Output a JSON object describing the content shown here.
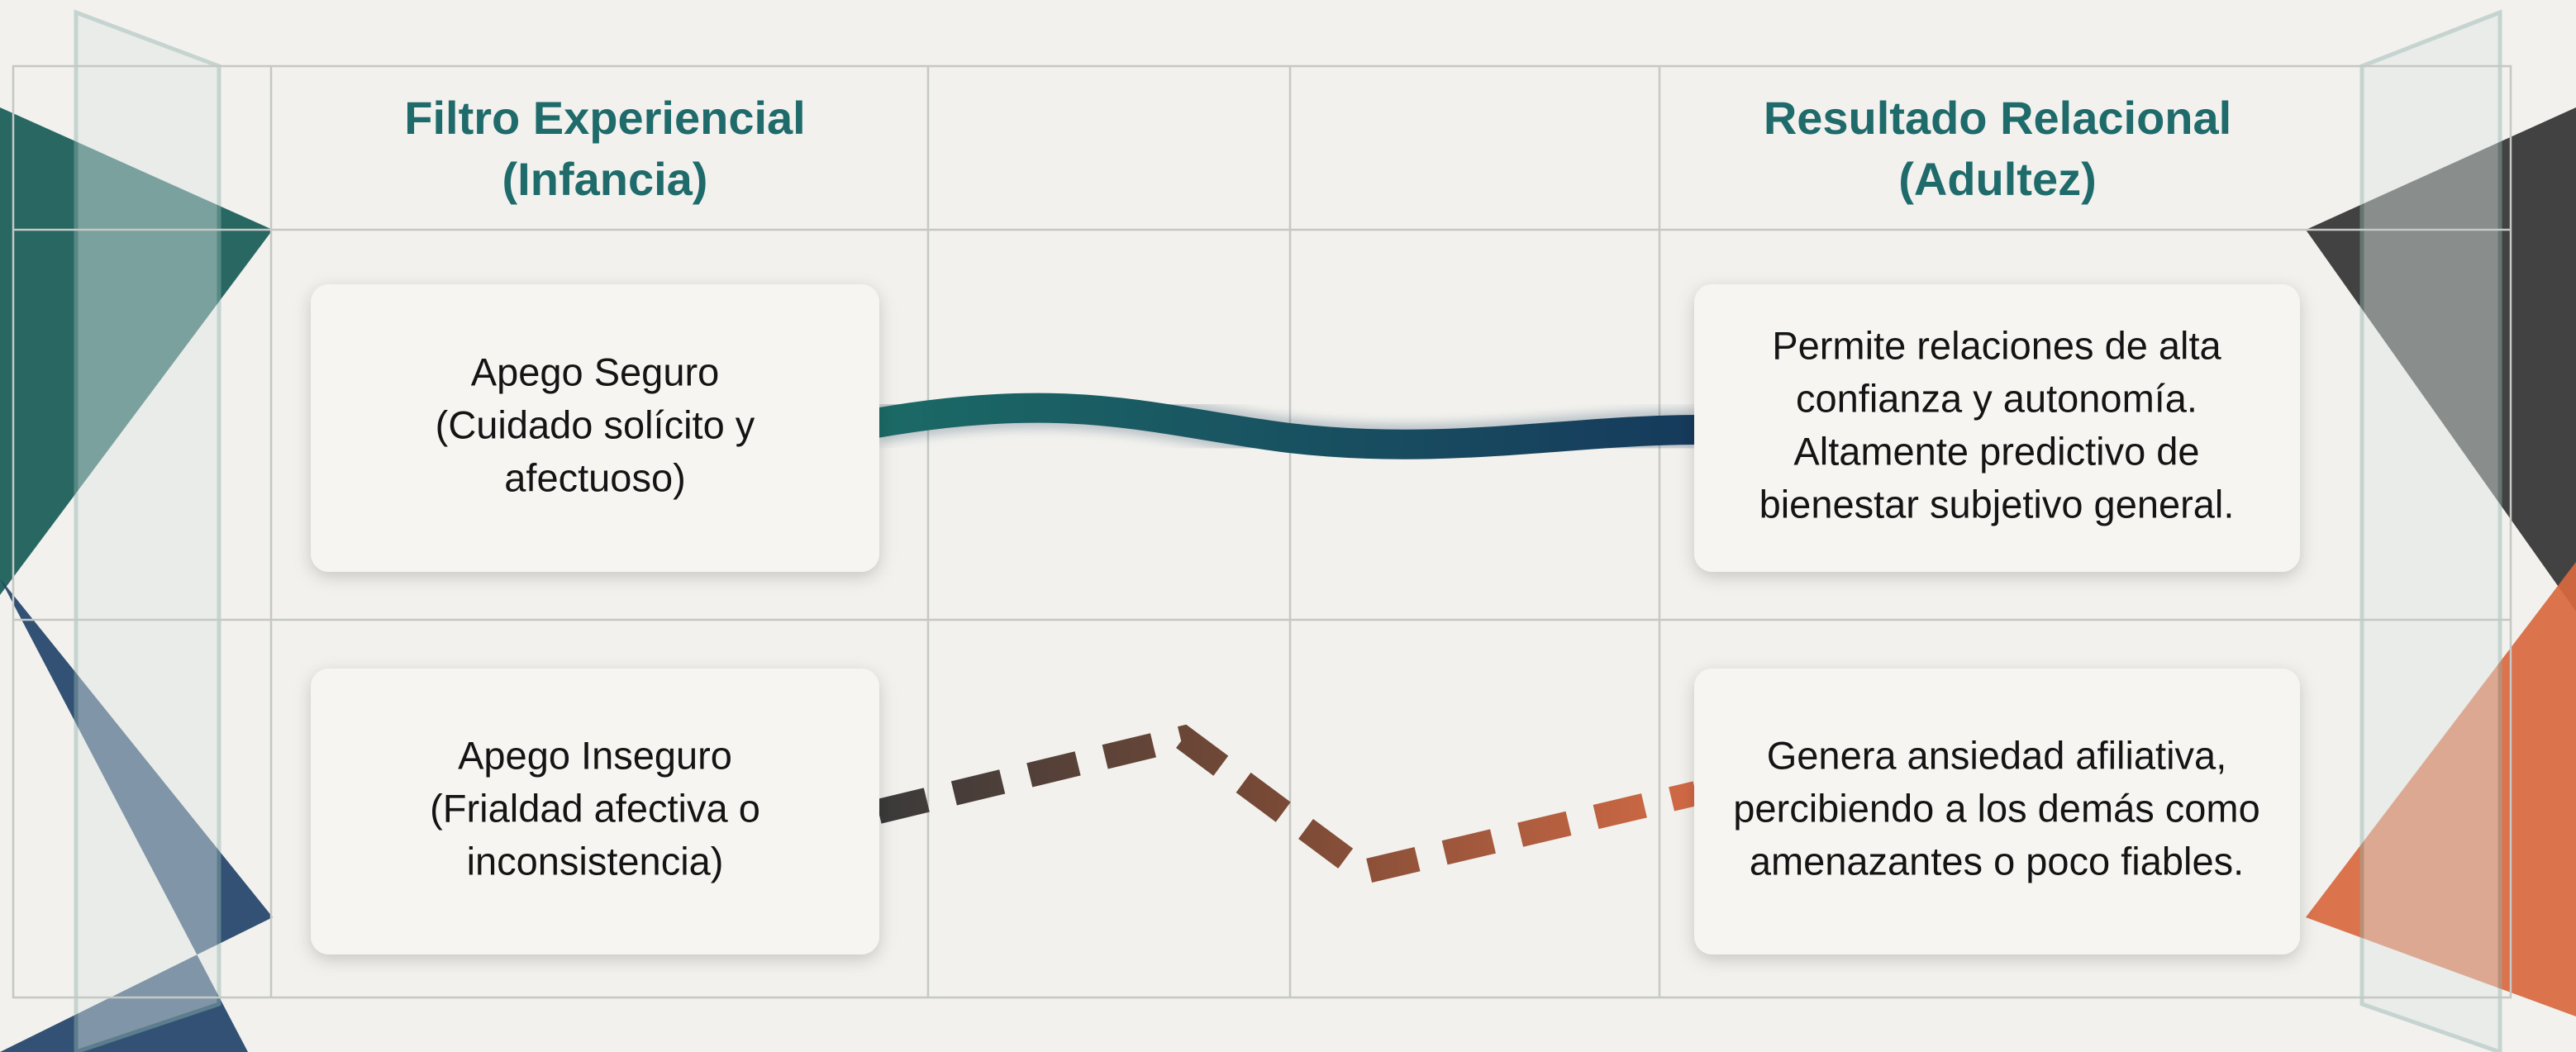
{
  "header": {
    "left": [
      "Filtro Experiencial",
      "(Infancia)"
    ],
    "right": [
      "Resultado Relacional",
      "(Adultez)"
    ]
  },
  "rows": [
    {
      "left": [
        "Apego Seguro",
        "(Cuidado solícito y",
        "afectuoso)"
      ],
      "right": [
        "Permite relaciones de alta",
        "confianza y autonomía.",
        "Altamente predictivo de",
        "bienestar subjetivo general."
      ]
    },
    {
      "left": [
        "Apego Inseguro",
        "(Frialdad afectiva o",
        "inconsistencia)"
      ],
      "right": [
        "Genera ansiedad afiliativa,",
        "percibiendo a los demás como",
        "amenazantes o poco fiables."
      ]
    }
  ]
}
